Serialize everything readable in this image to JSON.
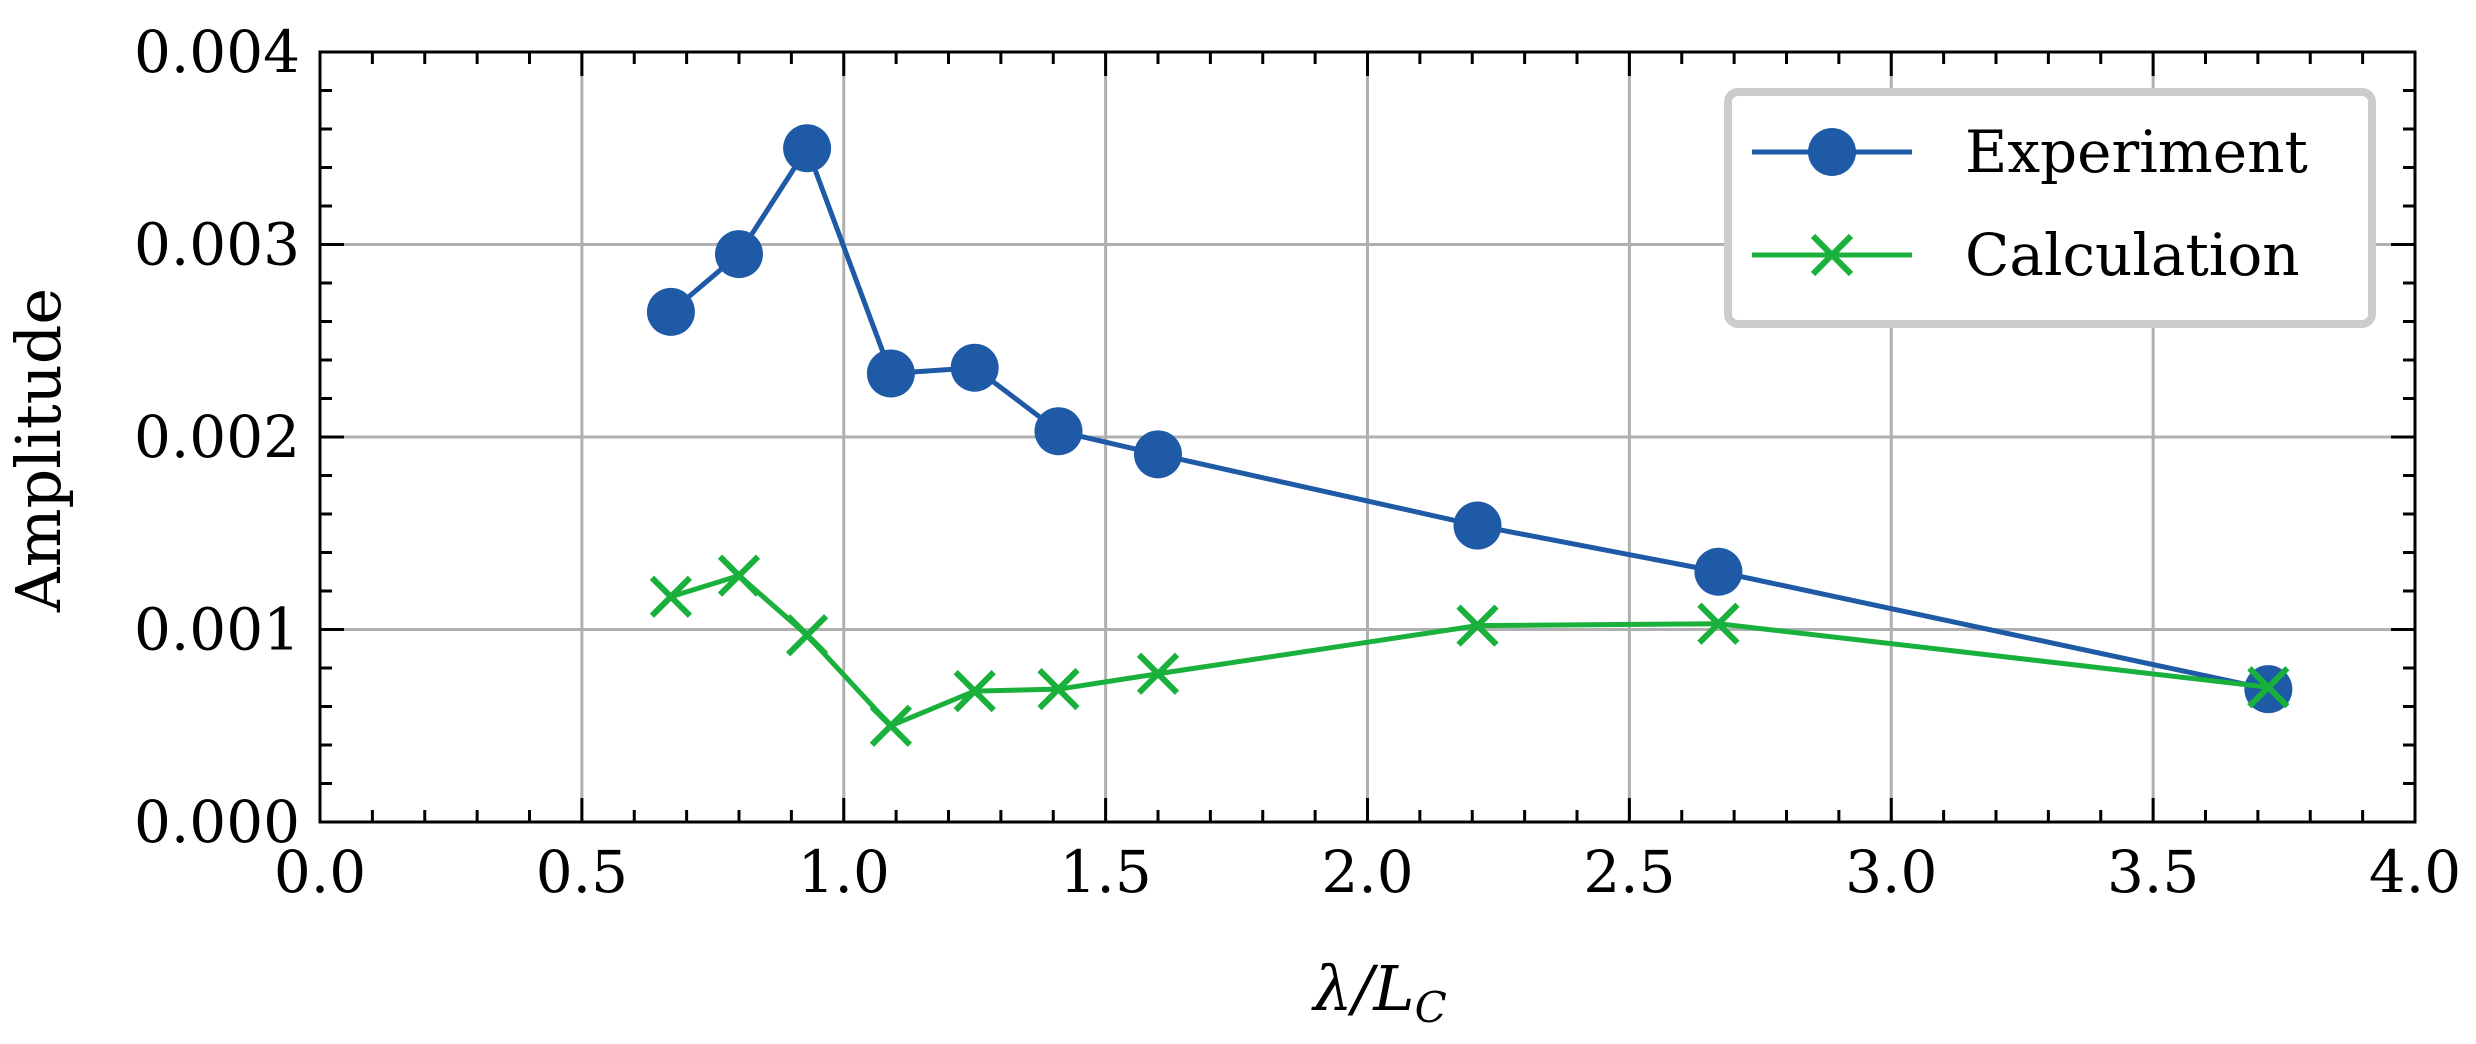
{
  "chart_data": {
    "type": "line",
    "title": "",
    "xlabel": "λ/L",
    "xlabel_sub": "C",
    "ylabel": "Amplitude",
    "xlim": [
      0.0,
      4.0
    ],
    "ylim": [
      0.0,
      0.004
    ],
    "x_ticks": [
      0.0,
      0.5,
      1.0,
      1.5,
      2.0,
      2.5,
      3.0,
      3.5,
      4.0
    ],
    "x_tick_labels": [
      "0.0",
      "0.5",
      "1.0",
      "1.5",
      "2.0",
      "2.5",
      "3.0",
      "3.5",
      "4.0"
    ],
    "y_ticks": [
      0.0,
      0.001,
      0.002,
      0.003,
      0.004
    ],
    "y_tick_labels": [
      "0.000",
      "0.001",
      "0.002",
      "0.003",
      "0.004"
    ],
    "grid": true,
    "legend_position": "top-right",
    "series": [
      {
        "name": "Experiment",
        "color": "#1f5aa6",
        "marker": "circle",
        "x": [
          0.67,
          0.8,
          0.93,
          1.09,
          1.25,
          1.41,
          1.6,
          2.21,
          2.67,
          3.72
        ],
        "y": [
          0.00265,
          0.00295,
          0.0035,
          0.00233,
          0.00236,
          0.00203,
          0.00191,
          0.00154,
          0.0013,
          0.00069
        ]
      },
      {
        "name": "Calculation",
        "color": "#19b03c",
        "marker": "x",
        "x": [
          0.67,
          0.8,
          0.93,
          1.09,
          1.25,
          1.41,
          1.6,
          2.21,
          2.67,
          3.72
        ],
        "y": [
          0.00117,
          0.00128,
          0.00097,
          0.0005,
          0.00068,
          0.00069,
          0.00077,
          0.00102,
          0.00103,
          0.0007
        ]
      }
    ]
  }
}
